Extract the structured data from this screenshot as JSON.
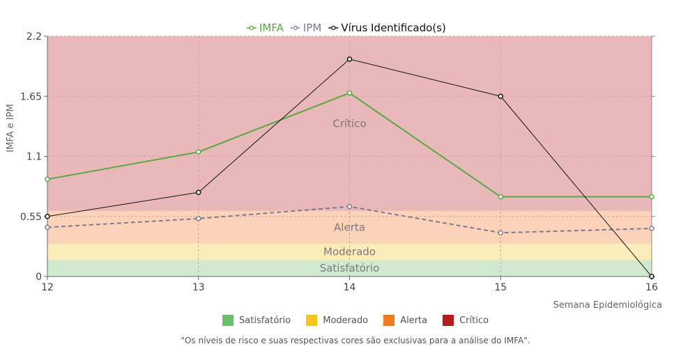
{
  "chart_data": {
    "type": "line",
    "x": [
      12,
      13,
      14,
      15,
      16
    ],
    "xlabel": "Semana Epidemiológica",
    "ylabel": "IMFA e IPM",
    "ylim": [
      0,
      2.2
    ],
    "yticks": [
      "0",
      "0.55",
      "1.1",
      "1.65",
      "2.2"
    ],
    "grid": true,
    "legend_position": "top-center",
    "series": [
      {
        "name": "IMFA",
        "values": [
          0.89,
          1.14,
          1.68,
          0.73,
          0.73
        ],
        "color": "#5aa845",
        "style": "solid"
      },
      {
        "name": "IPM",
        "values": [
          0.45,
          0.53,
          0.64,
          0.4,
          0.44
        ],
        "color": "#7d7a8f",
        "style": "dashed"
      },
      {
        "name": "Vírus Identificado(s)",
        "values": [
          0.55,
          0.77,
          1.99,
          1.65,
          0
        ],
        "color": "#111111",
        "style": "solid"
      }
    ],
    "bands": [
      {
        "name": "Satisfatório",
        "from": 0,
        "to": 0.15,
        "color": "#d0ead0"
      },
      {
        "name": "Moderado",
        "from": 0.15,
        "to": 0.3,
        "color": "#fcedb8"
      },
      {
        "name": "Alerta",
        "from": 0.3,
        "to": 0.6,
        "color": "#fcd3b8"
      },
      {
        "name": "Crítico",
        "from": 0.6,
        "to": 2.2,
        "color": "#e9b9b9"
      }
    ],
    "band_labels": [
      {
        "text": "Satisfatório",
        "y": 0.075
      },
      {
        "text": "Moderado",
        "y": 0.225
      },
      {
        "text": "Alerta",
        "y": 0.45
      },
      {
        "text": "Crítico",
        "y": 1.4
      }
    ],
    "risk_legend": [
      {
        "label": "Satisfatório",
        "color": "#6cc06a"
      },
      {
        "label": "Moderado",
        "color": "#f5c518"
      },
      {
        "label": "Alerta",
        "color": "#f07a1e"
      },
      {
        "label": "Crítico",
        "color": "#b71c1c"
      }
    ],
    "note": "\"Os níveis de risco e suas respectivas cores são exclusivas para a análise do IMFA\"."
  }
}
